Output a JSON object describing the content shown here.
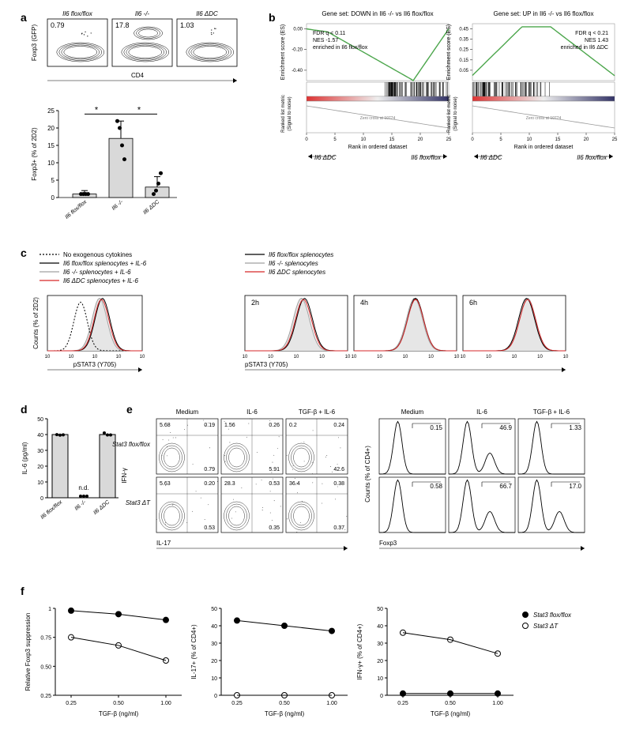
{
  "panel_a": {
    "label": "a",
    "flow": {
      "conditions": [
        "Il6 flox/flox",
        "Il6 -/-",
        "Il6 ΔDC"
      ],
      "gates": [
        "0.79",
        "17.8",
        "1.03"
      ],
      "ylab": "Foxp3 (GFP)",
      "xlab": "CD4"
    },
    "bar": {
      "ylab": "Foxp3+ (% of 2D2)",
      "xticks": [
        "Il6 flox/flox",
        "Il6 -/-",
        "Il6 ΔDC"
      ],
      "values": [
        1,
        17,
        3
      ],
      "errors": [
        1,
        5,
        3
      ],
      "points": [
        [
          1,
          1,
          1,
          1
        ],
        [
          22,
          20,
          15,
          11
        ],
        [
          1,
          2,
          4,
          7
        ]
      ],
      "sig": [
        "*",
        "*"
      ],
      "ylim": [
        0,
        25
      ],
      "bar_color": "#d9d9d9",
      "stroke": "#000000"
    }
  },
  "panel_b": {
    "label": "b",
    "left": {
      "title": "Gene set: DOWN in Il6 -/- vs Il6 flox/flox",
      "annot": [
        "FDR q < 0.11",
        "NES -1.57",
        "enriched in Il6 flox/flox"
      ],
      "ylab": "Enrichment score (ES)",
      "ylab2": "Ranked list metric\n(Signal to noise)",
      "xlab": "Rank in ordered dataset",
      "left_end": "Il6 ΔDC",
      "right_end": "Il6 flox/flox",
      "curve_color": "#4ca64c",
      "yticks": [
        0.0,
        -0.2,
        -0.4
      ],
      "ylim": [
        -0.5,
        0.05
      ],
      "xticks": [
        0,
        5,
        10,
        15,
        20,
        25
      ]
    },
    "right": {
      "title": "Gene set: UP in Il6 -/- vs Il6 flox/flox",
      "annot": [
        "FDR q < 0.21",
        "NES 1.43",
        "enriched in Il6 ΔDC"
      ],
      "ylab": "Enrichment score (ES)",
      "left_end": "Il6 ΔDC",
      "right_end": "Il6 flox/flox",
      "curve_color": "#4ca64c",
      "yticks": [
        0.45,
        0.35,
        0.25,
        0.15,
        0.05
      ],
      "ylim": [
        -0.05,
        0.5
      ],
      "xticks": [
        0,
        5,
        10,
        15,
        20,
        25
      ]
    }
  },
  "panel_c": {
    "label": "c",
    "legend_left": [
      {
        "text": "No exogenous cytokines",
        "style": "dotted",
        "color": "#000000"
      },
      {
        "text": "Il6 flox/flox splenocytes + IL-6",
        "style": "solid",
        "color": "#000000"
      },
      {
        "text": "Il6 -/- splenocytes + IL-6",
        "style": "solid",
        "color": "#a0a0a0"
      },
      {
        "text": "Il6 ΔDC splenocytes + IL-6",
        "style": "solid",
        "color": "#d62728"
      }
    ],
    "legend_right": [
      {
        "text": "Il6 flox/flox splenocytes",
        "style": "solid",
        "color": "#000000"
      },
      {
        "text": "Il6 -/- splenocytes",
        "style": "solid",
        "color": "#a0a0a0"
      },
      {
        "text": "Il6 ΔDC splenocytes",
        "style": "solid",
        "color": "#d62728"
      }
    ],
    "ylab": "Counts (% of 2D2)",
    "xlab": "pSTAT3 (Y705)",
    "timepoints": [
      "2h",
      "4h",
      "6h"
    ],
    "fill": "#e6e6e6"
  },
  "panel_d": {
    "label": "d",
    "ylab": "IL-6 (pg/ml)",
    "xticks": [
      "Il6 flox/flox",
      "Il6 -/-",
      "Il6 ΔDC"
    ],
    "values": [
      40,
      0,
      40
    ],
    "nd_label": "n.d.",
    "ylim": [
      0,
      50
    ],
    "bar_color": "#d9d9d9",
    "stroke": "#000000"
  },
  "panel_e": {
    "label": "e",
    "rows": [
      "Stat3 flox/flox",
      "Stat3 ΔT"
    ],
    "cols": [
      "Medium",
      "IL-6",
      "TGF-β + IL-6"
    ],
    "ylab": "IFN-γ",
    "xlab": "IL-17",
    "quad_values": [
      [
        [
          "5.68",
          "0.19",
          "0.79",
          ""
        ],
        [
          "1.56",
          "0.26",
          "5.91",
          ""
        ],
        [
          "0.2",
          "0.24",
          "42.6",
          ""
        ]
      ],
      [
        [
          "5.63",
          "0.20",
          "0.53",
          ""
        ],
        [
          "28.3",
          "0.53",
          "0.35",
          ""
        ],
        [
          "36.4",
          "0.38",
          "0.37",
          ""
        ]
      ]
    ],
    "hist_xlab": "Foxp3",
    "hist_ylab": "Counts (% of CD4+)",
    "hist_gates": [
      [
        "0.15",
        "46.9",
        "1.33"
      ],
      [
        "0.58",
        "66.7",
        "17.0"
      ]
    ]
  },
  "panel_f": {
    "label": "f",
    "legend": [
      {
        "text": "Stat3 flox/flox",
        "marker": "filled",
        "color": "#000000"
      },
      {
        "text": "Stat3 ΔT",
        "marker": "open",
        "color": "#000000"
      }
    ],
    "xlab": "TGF-β (ng/ml)",
    "xticks": [
      "0.25",
      "0.50",
      "1.00"
    ],
    "charts": [
      {
        "ylab": "Relative Foxp3 suppression",
        "ylim": [
          0.25,
          1.0
        ],
        "yticks": [
          0.25,
          0.5,
          0.75,
          1.0
        ],
        "series": [
          {
            "y": [
              0.98,
              0.95,
              0.9
            ],
            "filled": true
          },
          {
            "y": [
              0.75,
              0.68,
              0.55
            ],
            "filled": false
          }
        ]
      },
      {
        "ylab": "IL-17+ (% of CD4+)",
        "ylim": [
          0,
          50
        ],
        "yticks": [
          0,
          10,
          20,
          30,
          40,
          50
        ],
        "series": [
          {
            "y": [
              43,
              40,
              37
            ],
            "filled": true
          },
          {
            "y": [
              0,
              0,
              0
            ],
            "filled": false
          }
        ]
      },
      {
        "ylab": "IFN-γ+ (% of CD4+)",
        "ylim": [
          0,
          50
        ],
        "yticks": [
          0,
          10,
          20,
          30,
          40,
          50
        ],
        "series": [
          {
            "y": [
              1,
              1,
              1
            ],
            "filled": true
          },
          {
            "y": [
              36,
              32,
              24
            ],
            "filled": false
          }
        ]
      }
    ]
  }
}
